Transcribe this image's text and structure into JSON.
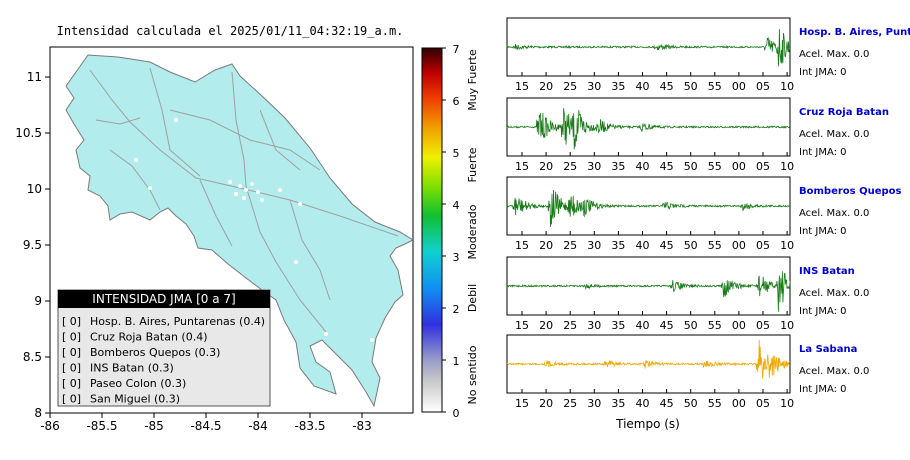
{
  "map": {
    "title": "Intensidad calculada el 2025/01/11_04:32:19_a.m.",
    "x_ticks": [
      "-86",
      "-85.5",
      "-85",
      "-84.5",
      "-84",
      "-83.5",
      "-83"
    ],
    "y_ticks": [
      "11",
      "10.5",
      "10",
      "9.5",
      "9",
      "8.5",
      "8"
    ],
    "colors": {
      "land": "#b3ecec",
      "roads": "#a9a9a9",
      "border": "#7a7a7a"
    }
  },
  "colorbar": {
    "ticks": [
      "7",
      "6",
      "5",
      "4",
      "3",
      "2",
      "1",
      "0"
    ],
    "categories": [
      "Muy Fuerte",
      "Fuerte",
      "Moderado",
      "Debil",
      "No sentido"
    ]
  },
  "legend": {
    "title": "INTENSIDAD JMA [0 a 7]",
    "items": [
      {
        "level": "[ 0]",
        "name": "Hosp. B. Aires, Puntarenas (0.4)"
      },
      {
        "level": "[ 0]",
        "name": "Cruz Roja Batan (0.4)"
      },
      {
        "level": "[ 0]",
        "name": "Bomberos Quepos (0.3)"
      },
      {
        "level": "[ 0]",
        "name": "INS Batan (0.3)"
      },
      {
        "level": "[ 0]",
        "name": "Paseo Colon (0.3)"
      },
      {
        "level": "[ 0]",
        "name": "San Miguel (0.3)"
      }
    ]
  },
  "seismograms": {
    "x_ticks": [
      "15",
      "20",
      "25",
      "30",
      "35",
      "40",
      "45",
      "50",
      "55",
      "00",
      "05",
      "10"
    ],
    "xlabel": "Tiempo (s)",
    "accel_label": "Acel. Max. 0.0",
    "int_label": "Int JMA: 0",
    "stations": [
      {
        "name": "Hosp. B. Aires, Puntare",
        "color": "#1a7a1a",
        "bursts": [
          {
            "t": 2,
            "amp": 0.1
          },
          {
            "t": 38,
            "amp": 0.15
          },
          {
            "t": 66,
            "amp": 0.45
          },
          {
            "t": 69,
            "amp": 0.85
          }
        ]
      },
      {
        "name": "Cruz Roja Batan",
        "color": "#1a7a1a",
        "bursts": [
          {
            "t": 8,
            "amp": 0.85
          },
          {
            "t": 14,
            "amp": 0.95
          },
          {
            "t": 17,
            "amp": 0.8
          },
          {
            "t": 23,
            "amp": 0.3
          },
          {
            "t": 34,
            "amp": 0.2
          }
        ]
      },
      {
        "name": "Bomberos Quepos",
        "color": "#1a7a1a",
        "bursts": [
          {
            "t": 2,
            "amp": 0.55
          },
          {
            "t": 11,
            "amp": 0.95
          },
          {
            "t": 16,
            "amp": 0.55
          },
          {
            "t": 19,
            "amp": 0.35
          },
          {
            "t": 40,
            "amp": 0.2
          },
          {
            "t": 60,
            "amp": 0.15
          }
        ]
      },
      {
        "name": "INS Batan",
        "color": "#1a7a1a",
        "bursts": [
          {
            "t": 20,
            "amp": 0.08
          },
          {
            "t": 42,
            "amp": 0.25
          },
          {
            "t": 55,
            "amp": 0.45
          },
          {
            "t": 64,
            "amp": 0.55
          },
          {
            "t": 69,
            "amp": 0.95
          }
        ]
      },
      {
        "name": "La Sabana",
        "color": "#f0a800",
        "bursts": [
          {
            "t": 10,
            "amp": 0.12
          },
          {
            "t": 25,
            "amp": 0.18
          },
          {
            "t": 35,
            "amp": 0.15
          },
          {
            "t": 50,
            "amp": 0.15
          },
          {
            "t": 64,
            "amp": 0.95
          },
          {
            "t": 66,
            "amp": 0.55
          }
        ]
      }
    ]
  }
}
